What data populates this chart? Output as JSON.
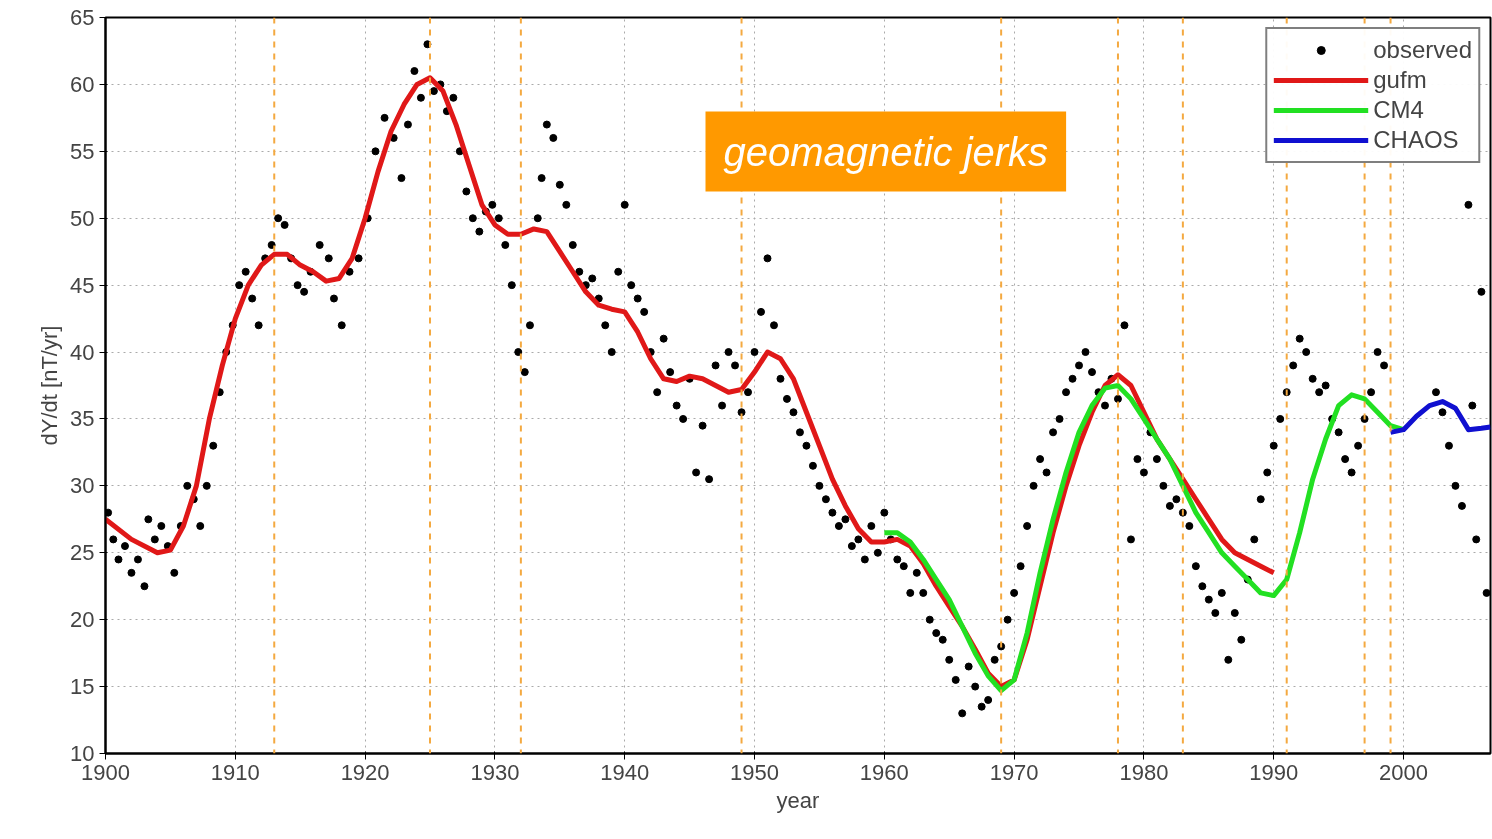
{
  "chart_data": {
    "type": "line",
    "xlabel": "year",
    "ylabel": "dY/dt [nT/yr]",
    "xlim": [
      1900,
      2006.7
    ],
    "ylim": [
      10,
      65
    ],
    "xticks": [
      1900,
      1910,
      1920,
      1930,
      1940,
      1950,
      1960,
      1970,
      1980,
      1990,
      2000
    ],
    "yticks": [
      10,
      15,
      20,
      25,
      30,
      35,
      40,
      45,
      50,
      55,
      60,
      65
    ],
    "grid": true,
    "legend": "top right",
    "line_style": "solid",
    "annotations": [
      "geomagnetic jerks"
    ],
    "ref_lines": [
      {
        "axis": "x",
        "value": 1913,
        "color": "#f4a940",
        "line_style": "dashed"
      },
      {
        "axis": "x",
        "value": 1925,
        "color": "#f4a940",
        "line_style": "dashed"
      },
      {
        "axis": "x",
        "value": 1932,
        "color": "#f4a940",
        "line_style": "dashed"
      },
      {
        "axis": "x",
        "value": 1949,
        "color": "#f4a940",
        "line_style": "dashed"
      },
      {
        "axis": "x",
        "value": 1969,
        "color": "#f4a940",
        "line_style": "dashed"
      },
      {
        "axis": "x",
        "value": 1978,
        "color": "#f4a940",
        "line_style": "dashed"
      },
      {
        "axis": "x",
        "value": 1983,
        "color": "#f4a940",
        "line_style": "dashed"
      },
      {
        "axis": "x",
        "value": 1991,
        "color": "#f4a940",
        "line_style": "dashed"
      },
      {
        "axis": "x",
        "value": 1997,
        "color": "#f4a940",
        "line_style": "dashed"
      },
      {
        "axis": "x",
        "value": 1999,
        "color": "#f4a940",
        "line_style": "dashed"
      }
    ],
    "series": [
      {
        "name": "observed",
        "type": "scatter",
        "marker": "circle",
        "color": "#000000",
        "x": [
          1900.2,
          1900.6,
          1901,
          1901.5,
          1902,
          1902.5,
          1903,
          1903.3,
          1903.8,
          1904.3,
          1904.8,
          1905.3,
          1905.8,
          1906.3,
          1906.8,
          1907.3,
          1907.8,
          1908.3,
          1908.8,
          1909.3,
          1909.8,
          1910.3,
          1910.8,
          1911.3,
          1911.8,
          1912.3,
          1912.8,
          1913.3,
          1913.8,
          1914.3,
          1914.8,
          1915.3,
          1915.8,
          1916.5,
          1917.2,
          1917.6,
          1918.2,
          1918.8,
          1919.5,
          1920.2,
          1920.8,
          1921.5,
          1922.2,
          1922.8,
          1923.3,
          1923.8,
          1924.3,
          1924.8,
          1925.3,
          1925.8,
          1926.3,
          1926.8,
          1927.3,
          1927.8,
          1928.3,
          1928.8,
          1929.3,
          1929.8,
          1930.3,
          1930.8,
          1931.3,
          1931.8,
          1932.3,
          1932.7,
          1933.3,
          1933.6,
          1934,
          1934.5,
          1935,
          1935.5,
          1936,
          1936.5,
          1937,
          1937.5,
          1938,
          1938.5,
          1939,
          1939.5,
          1940,
          1940.5,
          1941,
          1941.5,
          1942,
          1942.5,
          1943,
          1943.5,
          1944,
          1944.5,
          1945,
          1945.5,
          1946,
          1946.5,
          1947,
          1947.5,
          1948,
          1948.5,
          1949,
          1949.5,
          1950,
          1950.5,
          1951,
          1951.5,
          1952,
          1952.5,
          1953,
          1953.5,
          1954,
          1954.5,
          1955,
          1955.5,
          1956,
          1956.5,
          1957,
          1957.5,
          1958,
          1958.5,
          1959,
          1959.5,
          1960,
          1960.5,
          1961,
          1961.5,
          1962,
          1962.5,
          1963,
          1963.5,
          1964,
          1964.5,
          1965,
          1965.5,
          1966,
          1966.5,
          1967,
          1967.5,
          1968,
          1968.5,
          1969,
          1969.5,
          1970,
          1970.5,
          1971,
          1971.5,
          1972,
          1972.5,
          1973,
          1973.5,
          1974,
          1974.5,
          1975,
          1975.5,
          1976,
          1976.5,
          1977,
          1977.5,
          1978,
          1978.5,
          1979,
          1979.5,
          1980,
          1980.5,
          1981,
          1981.5,
          1982,
          1982.5,
          1983,
          1983.5,
          1984,
          1984.5,
          1985,
          1985.5,
          1986,
          1986.5,
          1987,
          1987.5,
          1988,
          1988.5,
          1989,
          1989.5,
          1990,
          1990.5,
          1991,
          1991.5,
          1992,
          1992.5,
          1993,
          1993.5,
          1994,
          1994.5,
          1995,
          1995.5,
          1996,
          1996.5,
          1997,
          1997.5,
          1998,
          1998.5,
          2002.5,
          2003,
          2003.5,
          2004,
          2004.5,
          2005,
          2005.3,
          2005.6,
          2006,
          2006.4
        ],
        "values": [
          28,
          26,
          24.5,
          25.5,
          23.5,
          24.5,
          22.5,
          27.5,
          26,
          27,
          25.5,
          23.5,
          27,
          30,
          29,
          27,
          30,
          33,
          37,
          40,
          42,
          45,
          46,
          44,
          42,
          47,
          48,
          50,
          49.5,
          47,
          45,
          44.5,
          46,
          48,
          47,
          44,
          42,
          46,
          47,
          50,
          55,
          57.5,
          56,
          53,
          57,
          61,
          59,
          63,
          59.5,
          60,
          58,
          59,
          55,
          52,
          50,
          49,
          50.5,
          51,
          50,
          48,
          45,
          40,
          38.5,
          42,
          50,
          53,
          57,
          56,
          52.5,
          51,
          48,
          46,
          45,
          45.5,
          44,
          42,
          40,
          46,
          51,
          45,
          44,
          43,
          40,
          37,
          41,
          38.5,
          36,
          35,
          38,
          31,
          34.5,
          30.5,
          39,
          36,
          40,
          39,
          35.5,
          37,
          40,
          43,
          47,
          42,
          38,
          36.5,
          35.5,
          34,
          33,
          31.5,
          30,
          29,
          28,
          27,
          27.5,
          25.5,
          26,
          24.5,
          27,
          25,
          28,
          26,
          24.5,
          24,
          22,
          23.5,
          22,
          20,
          19,
          18.5,
          17,
          15.5,
          13,
          16.5,
          15,
          13.5,
          14,
          17,
          18,
          20,
          22,
          24,
          27,
          30,
          32,
          31,
          34,
          35,
          37,
          38,
          39,
          40,
          38.5,
          37,
          36,
          38,
          36.5,
          42,
          26,
          32,
          31,
          34,
          32,
          30,
          28.5,
          29,
          28,
          27,
          24,
          22.5,
          21.5,
          20.5,
          22,
          17,
          20.5,
          18.5,
          23,
          26,
          29,
          31,
          33,
          35,
          37,
          39,
          41,
          40,
          38,
          37,
          37.5,
          35,
          34,
          32,
          31,
          33,
          35,
          37,
          40,
          39,
          37,
          35.5,
          33,
          30,
          28.5,
          51,
          36,
          26,
          44.5,
          22
        ]
      },
      {
        "name": "gufm",
        "color": "#e01818",
        "x": [
          1900,
          1902,
          1904,
          1905,
          1906,
          1907,
          1908,
          1909,
          1910,
          1911,
          1912,
          1913,
          1914,
          1915,
          1916,
          1917,
          1918,
          1919,
          1920,
          1921,
          1922,
          1923,
          1924,
          1925,
          1926,
          1927,
          1928,
          1929,
          1930,
          1931,
          1932,
          1933,
          1934,
          1935,
          1936,
          1937,
          1938,
          1939,
          1940,
          1941,
          1942,
          1943,
          1944,
          1945,
          1946,
          1947,
          1948,
          1949,
          1950,
          1951,
          1952,
          1953,
          1954,
          1955,
          1956,
          1957,
          1958,
          1959,
          1960,
          1961,
          1962,
          1963,
          1964,
          1965,
          1966,
          1967,
          1968,
          1969,
          1970,
          1971,
          1972,
          1973,
          1974,
          1975,
          1976,
          1977,
          1978,
          1979,
          1980,
          1981,
          1982,
          1983,
          1984,
          1985,
          1986,
          1987,
          1988,
          1989,
          1990
        ],
        "values": [
          27.5,
          26,
          25,
          25.2,
          27,
          30,
          35,
          39,
          42.5,
          45,
          46.5,
          47.3,
          47.3,
          46.5,
          46,
          45.3,
          45.5,
          47,
          50,
          53.5,
          56.5,
          58.5,
          60,
          60.5,
          59.5,
          57,
          54,
          51,
          49.5,
          48.8,
          48.8,
          49.2,
          49,
          47.5,
          46,
          44.5,
          43.5,
          43.2,
          43,
          41.5,
          39.5,
          38,
          37.8,
          38.2,
          38,
          37.5,
          37,
          37.2,
          38.5,
          40,
          39.5,
          38,
          35.5,
          33,
          30.5,
          28.5,
          26.8,
          25.8,
          25.8,
          26,
          25.5,
          24.2,
          22.5,
          21,
          19.5,
          17.8,
          16,
          15,
          15.5,
          18.5,
          22.5,
          26.5,
          30,
          33,
          35.5,
          37.5,
          38.3,
          37.5,
          35.5,
          33.5,
          32,
          30.5,
          29,
          27.5,
          26,
          25,
          24.5,
          24,
          23.5
        ]
      },
      {
        "name": "CM4",
        "color": "#22e022",
        "x": [
          1960,
          1961,
          1962,
          1963,
          1964,
          1965,
          1966,
          1967,
          1968,
          1969,
          1970,
          1971,
          1972,
          1973,
          1974,
          1975,
          1976,
          1977,
          1978,
          1979,
          1980,
          1981,
          1982,
          1983,
          1984,
          1985,
          1986,
          1987,
          1988,
          1989,
          1990,
          1991,
          1992,
          1993,
          1994,
          1995,
          1996,
          1997,
          1998,
          1999,
          2000
        ],
        "values": [
          26.5,
          26.5,
          25.8,
          24.5,
          23,
          21.5,
          19.5,
          17.5,
          15.8,
          14.7,
          15.5,
          19,
          23.5,
          27.5,
          31,
          34,
          36,
          37.3,
          37.5,
          36.5,
          35,
          33.5,
          32,
          30,
          28,
          26.5,
          25,
          24,
          23,
          22,
          21.8,
          23,
          26.5,
          30.5,
          33.5,
          36,
          36.8,
          36.5,
          35.5,
          34.5,
          34.2
        ]
      },
      {
        "name": "CHAOS",
        "color": "#1010d0",
        "x": [
          1999,
          2000,
          2001,
          2002,
          2003,
          2004,
          2005,
          2006,
          2006.7
        ],
        "values": [
          34,
          34.2,
          35.2,
          36,
          36.3,
          35.8,
          34.2,
          34.3,
          34.4
        ]
      }
    ]
  }
}
